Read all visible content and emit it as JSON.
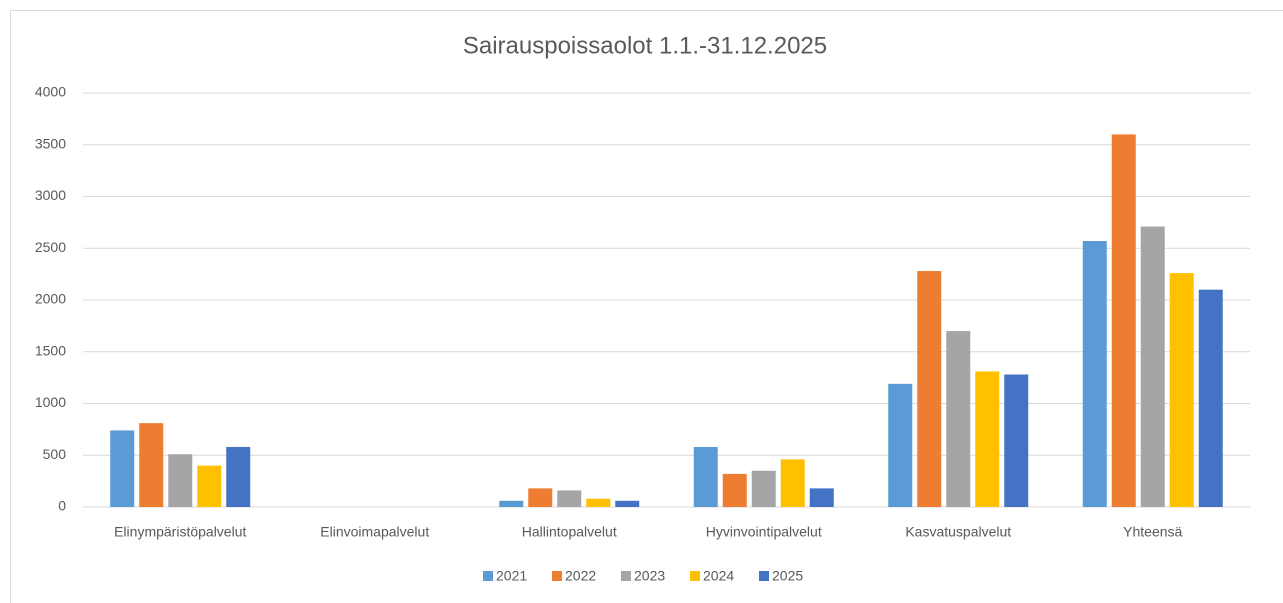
{
  "chart_data": {
    "type": "bar",
    "title": "Sairauspoissaolot 1.1.-31.12.2025",
    "categories": [
      "Elinympäristöpalvelut",
      "Elinvoimapalvelut",
      "Hallintopalvelut",
      "Hyvinvointipalvelut",
      "Kasvatuspalvelut",
      "Yhteensä"
    ],
    "series": [
      {
        "name": "2021",
        "color": "#5b9bd5",
        "values": [
          740,
          0,
          60,
          580,
          1190,
          2570
        ]
      },
      {
        "name": "2022",
        "color": "#ed7d31",
        "values": [
          810,
          0,
          180,
          320,
          2280,
          3600
        ]
      },
      {
        "name": "2023",
        "color": "#a5a5a5",
        "values": [
          510,
          0,
          160,
          350,
          1700,
          2710
        ]
      },
      {
        "name": "2024",
        "color": "#ffc000",
        "values": [
          400,
          0,
          80,
          460,
          1310,
          2260
        ]
      },
      {
        "name": "2025",
        "color": "#4472c4",
        "values": [
          580,
          0,
          60,
          180,
          1280,
          2100
        ]
      }
    ],
    "ylim": [
      0,
      4000
    ],
    "yticks": [
      0,
      500,
      1000,
      1500,
      2000,
      2500,
      3000,
      3500,
      4000
    ],
    "grid": true,
    "legend": "bottom"
  }
}
